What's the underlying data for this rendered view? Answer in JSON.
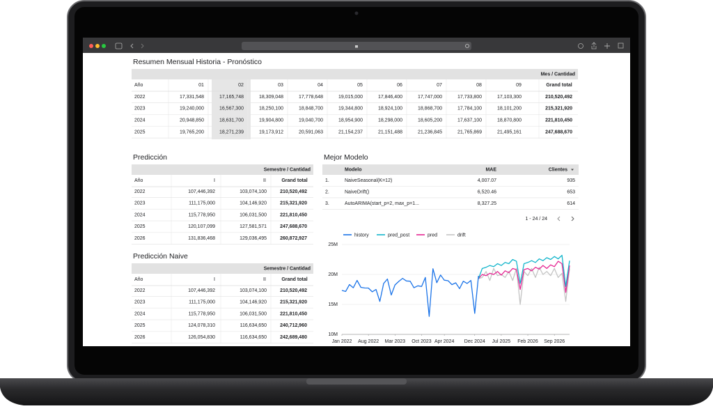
{
  "summary": {
    "title": "Resumen Mensual Historia - Pronóstico",
    "header_group": "Mes / Cantidad",
    "columns": [
      "Año",
      "01",
      "02",
      "03",
      "04",
      "05",
      "06",
      "07",
      "08",
      "09",
      "Grand total"
    ],
    "rows": [
      [
        "2022",
        "17,331,548",
        "17,165,748",
        "18,309,048",
        "17,778,648",
        "19,015,000",
        "17,846,400",
        "17,747,000",
        "17,733,800",
        "17,103,300",
        "210,520,492"
      ],
      [
        "2023",
        "19,240,000",
        "16,567,300",
        "18,250,100",
        "18,848,700",
        "19,344,800",
        "18,924,100",
        "18,868,700",
        "17,784,100",
        "18,101,200",
        "215,321,920"
      ],
      [
        "2024",
        "20,948,850",
        "18,631,700",
        "19,904,800",
        "19,040,700",
        "18,954,900",
        "18,298,000",
        "18,605,200",
        "17,637,100",
        "18,870,800",
        "221,810,450"
      ],
      [
        "2025",
        "19,765,200",
        "18,271,239",
        "19,173,912",
        "20,591,063",
        "21,154,237",
        "21,151,488",
        "21,236,845",
        "21,765,869",
        "21,495,161",
        "247,688,670"
      ]
    ]
  },
  "prediction": {
    "title": "Predicción",
    "header_group": "Semestre / Cantidad",
    "columns": [
      "Año",
      "I",
      "II",
      "Grand total"
    ],
    "rows": [
      [
        "2022",
        "107,446,392",
        "103,074,100",
        "210,520,492"
      ],
      [
        "2023",
        "111,175,000",
        "104,146,920",
        "215,321,920"
      ],
      [
        "2024",
        "115,778,950",
        "106,031,500",
        "221,810,450"
      ],
      [
        "2025",
        "120,107,099",
        "127,581,571",
        "247,688,670"
      ],
      [
        "2026",
        "131,836,468",
        "129,036,495",
        "260,872,927"
      ]
    ]
  },
  "naive": {
    "title": "Predicción Naive",
    "header_group": "Semestre / Cantidad",
    "columns": [
      "Año",
      "I",
      "II",
      "Grand total"
    ],
    "rows": [
      [
        "2022",
        "107,446,392",
        "103,074,100",
        "210,520,492"
      ],
      [
        "2023",
        "111,175,000",
        "104,146,920",
        "215,321,920"
      ],
      [
        "2024",
        "115,778,950",
        "106,031,500",
        "221,810,450"
      ],
      [
        "2025",
        "124,078,310",
        "116,634,650",
        "240,712,960"
      ],
      [
        "2026",
        "126,054,830",
        "116,634,650",
        "242,689,480"
      ]
    ]
  },
  "best_model": {
    "title": "Mejor Modelo",
    "columns": [
      "Modelo",
      "MAE",
      "Clientes"
    ],
    "rows": [
      [
        "1.",
        "NaiveSeasonal(K=12)",
        "4,007.07",
        "935"
      ],
      [
        "2.",
        "NaiveDrift()",
        "6,520.46",
        "653"
      ],
      [
        "3.",
        "AutoARIMA(start_p=2, max_p=1...",
        "8,327.25",
        "614"
      ]
    ],
    "pagination": "1 - 24 / 24"
  },
  "chart_data": {
    "type": "line",
    "x": [
      "2022-01",
      "2022-02",
      "2022-03",
      "2022-04",
      "2022-05",
      "2022-06",
      "2022-07",
      "2022-08",
      "2022-09",
      "2022-10",
      "2022-11",
      "2022-12",
      "2023-01",
      "2023-02",
      "2023-03",
      "2023-04",
      "2023-05",
      "2023-06",
      "2023-07",
      "2023-08",
      "2023-09",
      "2023-10",
      "2023-11",
      "2023-12",
      "2024-01",
      "2024-02",
      "2024-03",
      "2024-04",
      "2024-05",
      "2024-06",
      "2024-07",
      "2024-08",
      "2024-09",
      "2024-10",
      "2024-11",
      "2024-12",
      "2025-01",
      "2025-02",
      "2025-03",
      "2025-04",
      "2025-05",
      "2025-06",
      "2025-07",
      "2025-08",
      "2025-09",
      "2025-10",
      "2025-11",
      "2025-12",
      "2026-01",
      "2026-02",
      "2026-03",
      "2026-04",
      "2026-05",
      "2026-06",
      "2026-07",
      "2026-08",
      "2026-09",
      "2026-10",
      "2026-11",
      "2026-12",
      "2027-01"
    ],
    "series": [
      {
        "name": "history",
        "color": "#1a73e8",
        "values": [
          17331548,
          17165748,
          18309048,
          17778648,
          19015000,
          17846400,
          17747000,
          17733800,
          17103300,
          17500000,
          15500000,
          18500000,
          19240000,
          16567300,
          18250100,
          18848700,
          19344800,
          18924100,
          18868700,
          17784100,
          18101200,
          18000000,
          19500000,
          13000000,
          20948850,
          18631700,
          19904800,
          19040700,
          18954900,
          18298000,
          18605200,
          17637100,
          18870800,
          18500000,
          19000000,
          13500000,
          19765200,
          null,
          null,
          null,
          null,
          null,
          null,
          null,
          null,
          null,
          null,
          null,
          null,
          null,
          null,
          null,
          null,
          null,
          null,
          null,
          null,
          null,
          null,
          null,
          null
        ]
      },
      {
        "name": "pred_post",
        "color": "#12b5cb",
        "values": [
          null,
          null,
          null,
          null,
          null,
          null,
          null,
          null,
          null,
          null,
          null,
          null,
          null,
          null,
          null,
          null,
          null,
          null,
          null,
          null,
          null,
          null,
          null,
          null,
          null,
          null,
          null,
          null,
          null,
          null,
          null,
          null,
          null,
          null,
          null,
          null,
          19300000,
          21000000,
          21200000,
          21500000,
          21300000,
          21800000,
          21500000,
          22000000,
          21800000,
          22500000,
          22200000,
          18500000,
          21800000,
          22000000,
          22300000,
          22000000,
          22600000,
          22300000,
          22800000,
          22500000,
          23000000,
          22600000,
          23200000,
          18000000,
          22300000
        ]
      },
      {
        "name": "pred",
        "color": "#e52592",
        "values": [
          null,
          null,
          null,
          null,
          null,
          null,
          null,
          null,
          null,
          null,
          null,
          null,
          null,
          null,
          null,
          null,
          null,
          null,
          null,
          null,
          null,
          null,
          null,
          null,
          null,
          null,
          null,
          null,
          null,
          null,
          null,
          null,
          null,
          null,
          null,
          null,
          19300000,
          20000000,
          19800000,
          20200000,
          20000000,
          20500000,
          19900000,
          20600000,
          20300000,
          21000000,
          20800000,
          17500000,
          20800000,
          21000000,
          20600000,
          21200000,
          20900000,
          21500000,
          21000000,
          21600000,
          21300000,
          22200000,
          21800000,
          17000000,
          21500000
        ]
      },
      {
        "name": "drift",
        "color": "#c4c4c4",
        "values": [
          null,
          null,
          null,
          null,
          null,
          null,
          null,
          null,
          null,
          null,
          null,
          null,
          null,
          null,
          null,
          null,
          null,
          null,
          null,
          null,
          null,
          null,
          null,
          null,
          null,
          null,
          null,
          null,
          null,
          null,
          null,
          null,
          null,
          null,
          null,
          null,
          19300000,
          19500000,
          20500000,
          19000000,
          21000000,
          19800000,
          20000000,
          19500000,
          20500000,
          19000000,
          21000000,
          15000000,
          20500000,
          19800000,
          21000000,
          19500000,
          21200000,
          20000000,
          20500000,
          19800000,
          21000000,
          19500000,
          20200000,
          15500000,
          21000000
        ]
      }
    ],
    "xlim": [
      "2022-01",
      "2027-01"
    ],
    "xticks": [
      {
        "value": "2022-01",
        "label": "Jan 2022"
      },
      {
        "value": "2022-08",
        "label": "Aug 2022"
      },
      {
        "value": "2023-03",
        "label": "Mar 2023"
      },
      {
        "value": "2023-10",
        "label": "Oct 2023"
      },
      {
        "value": "2024-04",
        "label": "Apr 2024"
      },
      {
        "value": "2024-12",
        "label": "Dec 2024"
      },
      {
        "value": "2025-07",
        "label": "Jul 2025"
      },
      {
        "value": "2026-02",
        "label": "Feb 2026"
      },
      {
        "value": "2026-09",
        "label": "Sep 2026"
      }
    ],
    "ylim": [
      10000000,
      25000000
    ],
    "yticks": [
      {
        "value": 10000000,
        "label": "10M"
      },
      {
        "value": 15000000,
        "label": "15M"
      },
      {
        "value": 20000000,
        "label": "20M"
      },
      {
        "value": 25000000,
        "label": "25M"
      }
    ],
    "grid": true,
    "legend": "top"
  }
}
